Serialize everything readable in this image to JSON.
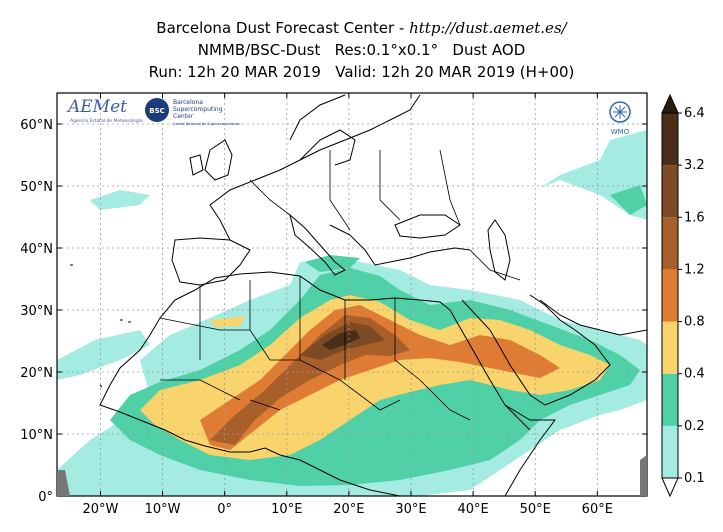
{
  "header": {
    "line1_prefix": "Barcelona Dust Forecast Center - ",
    "line1_url": "http://dust.aemet.es/",
    "line2": "NMMB/BSC-Dust   Res:0.1°x0.1°   Dust AOD",
    "line3": "Run: 12h 20 MAR 2019   Valid: 12h 20 MAR 2019 (H+00)"
  },
  "logos": {
    "aemet_text": "AEMet",
    "aemet_sub": "Agencia Estatal de Meteorología",
    "bsc_badge": "BSC",
    "bsc_line1": "Barcelona",
    "bsc_line2": "Supercomputing",
    "bsc_line3": "Center",
    "bsc_sub": "Centro Nacional de Supercomputación",
    "wmo_text": "WMO"
  },
  "axes": {
    "lat_ticks": [
      {
        "value": 0,
        "label": "0°"
      },
      {
        "value": 10,
        "label": "10°N"
      },
      {
        "value": 20,
        "label": "20°N"
      },
      {
        "value": 30,
        "label": "30°N"
      },
      {
        "value": 40,
        "label": "40°N"
      },
      {
        "value": 50,
        "label": "50°N"
      },
      {
        "value": 60,
        "label": "60°N"
      }
    ],
    "lon_ticks": [
      {
        "value": -20,
        "label": "20°W"
      },
      {
        "value": -10,
        "label": "10°W"
      },
      {
        "value": 0,
        "label": "0°"
      },
      {
        "value": 10,
        "label": "10°E"
      },
      {
        "value": 20,
        "label": "20°E"
      },
      {
        "value": 30,
        "label": "30°E"
      },
      {
        "value": 40,
        "label": "40°E"
      },
      {
        "value": 50,
        "label": "50°E"
      },
      {
        "value": 60,
        "label": "60°E"
      }
    ],
    "lon_range": [
      -27,
      68
    ],
    "lat_range": [
      0,
      65
    ]
  },
  "colorbar": {
    "levels": [
      "0.1",
      "0.2",
      "0.4",
      "0.8",
      "1.2",
      "1.6",
      "3.2",
      "6.4"
    ],
    "colors": [
      "#a4ebe2",
      "#4fd0a6",
      "#f9d36b",
      "#e07b34",
      "#a85f2a",
      "#7c4a24",
      "#4a2e19"
    ],
    "extend_colors": {
      "below": "#ffffff",
      "above": "#2b1c10"
    }
  },
  "map_colors": {
    "ocean": "#ffffff",
    "coast": "#000000",
    "grid": "#9a9a9a"
  }
}
